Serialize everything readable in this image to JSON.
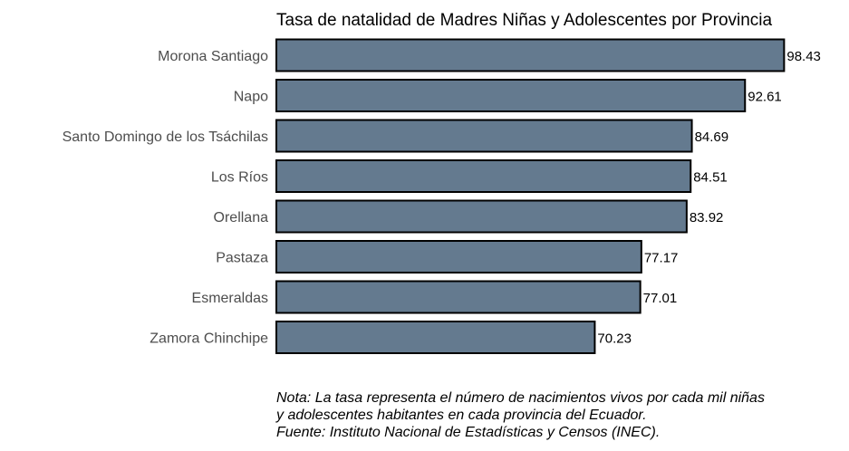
{
  "chart_data": {
    "type": "bar",
    "orientation": "horizontal",
    "title": "Tasa de natalidad de Madres Niñas y Adolescentes por Provincia",
    "categories": [
      "Morona Santiago",
      "Napo",
      "Santo Domingo de los Tsáchilas",
      "Los Ríos",
      "Orellana",
      "Pastaza",
      "Esmeraldas",
      "Zamora Chinchipe"
    ],
    "values": [
      98.43,
      92.61,
      84.69,
      84.51,
      83.92,
      77.17,
      77.01,
      70.23
    ],
    "value_labels": [
      "98.43",
      "92.61",
      "84.69",
      "84.51",
      "83.92",
      "77.17",
      "77.01",
      "70.23"
    ],
    "xlabel": "",
    "ylabel": "",
    "xlim": [
      22.8,
      100
    ],
    "grid": false,
    "bar_color": "#647a8f",
    "bar_border_color": "#000000"
  },
  "caption": {
    "lines": [
      "Nota: La tasa representa el número de nacimientos vivos por cada mil niñas",
      "y adolescentes habitantes en cada provincia del Ecuador.",
      "Fuente: Instituto Nacional de Estadísticas y Censos (INEC)."
    ]
  }
}
